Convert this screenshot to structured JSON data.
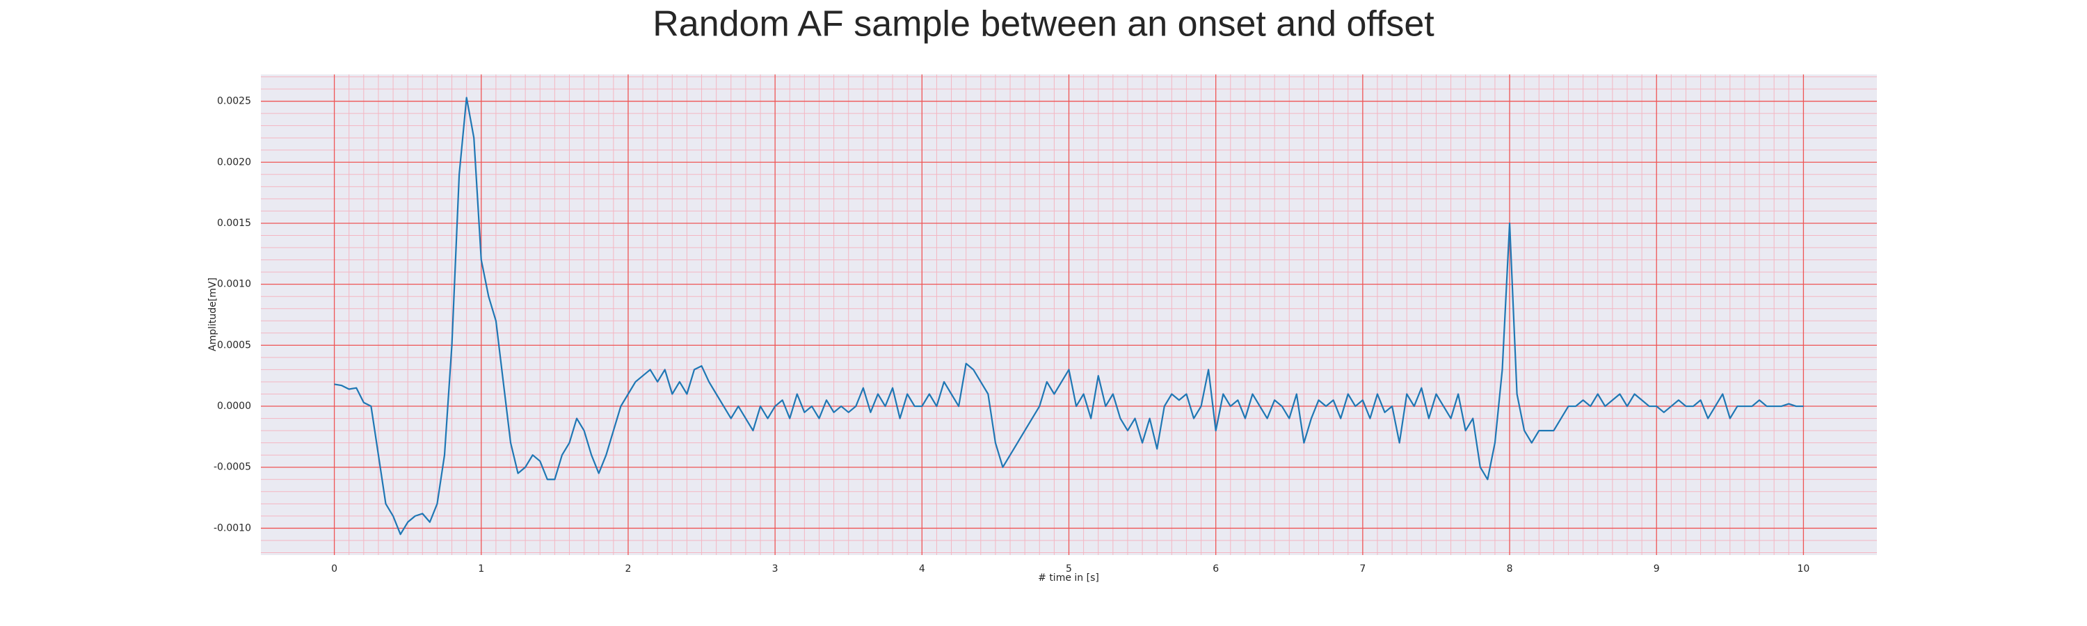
{
  "chart_data": {
    "type": "line",
    "title": "Random AF sample between an onset and offset",
    "xlabel": "# time in [s]",
    "ylabel": "Amplitude[mV]",
    "color": "#1f77b4",
    "grid": true,
    "xlim": [
      -0.5,
      10.5
    ],
    "ylim": [
      -0.00122,
      0.00272
    ],
    "xticks": [
      0,
      1,
      2,
      3,
      4,
      5,
      6,
      7,
      8,
      9,
      10
    ],
    "yticks": [
      {
        "value": -0.001,
        "label": "-0.0010"
      },
      {
        "value": -0.0005,
        "label": "-0.0005"
      },
      {
        "value": 0,
        "label": "0.0000"
      },
      {
        "value": 0.0005,
        "label": "0.0005"
      },
      {
        "value": 0.001,
        "label": "0.0010"
      },
      {
        "value": 0.0015,
        "label": "0.0015"
      },
      {
        "value": 0.002,
        "label": "0.0020"
      },
      {
        "value": 0.0025,
        "label": "0.0025"
      }
    ],
    "x": [
      0,
      0.05,
      0.1,
      0.15,
      0.2,
      0.25,
      0.3,
      0.35,
      0.4,
      0.45,
      0.5,
      0.55,
      0.6,
      0.65,
      0.7,
      0.75,
      0.8,
      0.85,
      0.9,
      0.95,
      1,
      1.05,
      1.1,
      1.15,
      1.2,
      1.25,
      1.3,
      1.35,
      1.4,
      1.45,
      1.5,
      1.55,
      1.6,
      1.65,
      1.7,
      1.75,
      1.8,
      1.85,
      1.9,
      1.95,
      2,
      2.05,
      2.1,
      2.15,
      2.2,
      2.25,
      2.3,
      2.35,
      2.4,
      2.45,
      2.5,
      2.55,
      2.6,
      2.65,
      2.7,
      2.75,
      2.8,
      2.85,
      2.9,
      2.95,
      3,
      3.05,
      3.1,
      3.15,
      3.2,
      3.25,
      3.3,
      3.35,
      3.4,
      3.45,
      3.5,
      3.55,
      3.6,
      3.65,
      3.7,
      3.75,
      3.8,
      3.85,
      3.9,
      3.95,
      4,
      4.05,
      4.1,
      4.15,
      4.2,
      4.25,
      4.3,
      4.35,
      4.4,
      4.45,
      4.5,
      4.55,
      4.6,
      4.65,
      4.7,
      4.75,
      4.8,
      4.85,
      4.9,
      4.95,
      5,
      5.05,
      5.1,
      5.15,
      5.2,
      5.25,
      5.3,
      5.35,
      5.4,
      5.45,
      5.5,
      5.55,
      5.6,
      5.65,
      5.7,
      5.75,
      5.8,
      5.85,
      5.9,
      5.95,
      6,
      6.05,
      6.1,
      6.15,
      6.2,
      6.25,
      6.3,
      6.35,
      6.4,
      6.45,
      6.5,
      6.55,
      6.6,
      6.65,
      6.7,
      6.75,
      6.8,
      6.85,
      6.9,
      6.95,
      7,
      7.05,
      7.1,
      7.15,
      7.2,
      7.25,
      7.3,
      7.35,
      7.4,
      7.45,
      7.5,
      7.55,
      7.6,
      7.65,
      7.7,
      7.75,
      7.8,
      7.85,
      7.9,
      7.95,
      8,
      8.05,
      8.1,
      8.15,
      8.2,
      8.25,
      8.3,
      8.35,
      8.4,
      8.45,
      8.5,
      8.55,
      8.6,
      8.65,
      8.7,
      8.75,
      8.8,
      8.85,
      8.9,
      8.95,
      9,
      9.05,
      9.1,
      9.15,
      9.2,
      9.25,
      9.3,
      9.35,
      9.4,
      9.45,
      9.5,
      9.55,
      9.6,
      9.65,
      9.7,
      9.75,
      9.8,
      9.85,
      9.9,
      9.95,
      10
    ],
    "values": [
      0.00018,
      0.00017,
      0.00014,
      0.00015,
      3e-05,
      0.0,
      -0.0004,
      -0.0008,
      -0.0009,
      -0.00105,
      -0.00095,
      -0.0009,
      -0.00088,
      -0.00095,
      -0.0008,
      -0.0004,
      0.0005,
      0.0019,
      0.00253,
      0.0022,
      0.0012,
      0.0009,
      0.0007,
      0.0002,
      -0.0003,
      -0.00055,
      -0.0005,
      -0.0004,
      -0.00045,
      -0.0006,
      -0.0006,
      -0.0004,
      -0.0003,
      -0.0001,
      -0.0002,
      -0.0004,
      -0.00055,
      -0.0004,
      -0.0002,
      0.0,
      0.0001,
      0.0002,
      0.00025,
      0.0003,
      0.0002,
      0.0003,
      0.0001,
      0.0002,
      0.0001,
      0.0003,
      0.00033,
      0.0002,
      0.0001,
      0.0,
      -0.0001,
      0.0,
      -0.0001,
      -0.0002,
      0.0,
      -0.0001,
      0.0,
      5e-05,
      -0.0001,
      0.0001,
      -5e-05,
      0.0,
      -0.0001,
      5e-05,
      -5e-05,
      0.0,
      -5e-05,
      0.0,
      0.00015,
      -5e-05,
      0.0001,
      0.0,
      0.00015,
      -0.0001,
      0.0001,
      0.0,
      0.0,
      0.0001,
      0.0,
      0.0002,
      0.0001,
      0.0,
      0.00035,
      0.0003,
      0.0002,
      0.0001,
      -0.0003,
      -0.0005,
      -0.0004,
      -0.0003,
      -0.0002,
      -0.0001,
      0.0,
      0.0002,
      0.0001,
      0.0002,
      0.0003,
      0.0,
      0.0001,
      -0.0001,
      0.00025,
      0.0,
      0.0001,
      -0.0001,
      -0.0002,
      -0.0001,
      -0.0003,
      -0.0001,
      -0.00035,
      0.0,
      0.0001,
      5e-05,
      0.0001,
      -0.0001,
      0.0,
      0.0003,
      -0.0002,
      0.0001,
      0.0,
      5e-05,
      -0.0001,
      0.0001,
      0.0,
      -0.0001,
      5e-05,
      0.0,
      -0.0001,
      0.0001,
      -0.0003,
      -0.0001,
      5e-05,
      0.0,
      5e-05,
      -0.0001,
      0.0001,
      0.0,
      5e-05,
      -0.0001,
      0.0001,
      -5e-05,
      0.0,
      -0.0003,
      0.0001,
      0.0,
      0.00015,
      -0.0001,
      0.0001,
      0.0,
      -0.0001,
      0.0001,
      -0.0002,
      -0.0001,
      -0.0005,
      -0.0006,
      -0.0003,
      0.0003,
      0.0015,
      0.0001,
      -0.0002,
      -0.0003,
      -0.0002,
      -0.0002,
      -0.0002,
      -0.0001,
      0.0,
      0.0,
      5e-05,
      0.0,
      0.0001,
      0.0,
      5e-05,
      0.0001,
      0.0,
      0.0001,
      5e-05,
      0.0,
      0.0,
      -5e-05,
      0.0,
      5e-05,
      0.0,
      0.0,
      5e-05,
      -0.0001,
      0.0,
      0.0001,
      -0.0001,
      0.0,
      0.0,
      0.0,
      5e-05,
      0.0,
      0.0,
      0.0,
      2e-05,
      0.0,
      0.0
    ]
  }
}
